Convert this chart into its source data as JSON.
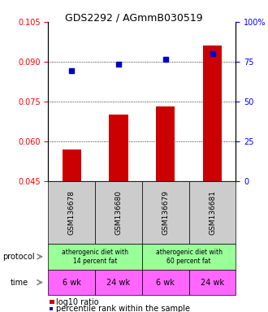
{
  "title": "GDS2292 / AGmmB030519",
  "samples": [
    "GSM136678",
    "GSM136680",
    "GSM136679",
    "GSM136681"
  ],
  "bar_values": [
    0.057,
    0.07,
    0.073,
    0.096
  ],
  "bar_bottom": 0.045,
  "dot_values": [
    0.0865,
    0.089,
    0.091,
    0.093
  ],
  "ylim_left": [
    0.045,
    0.105
  ],
  "ylim_right": [
    0,
    100
  ],
  "yticks_left": [
    0.045,
    0.06,
    0.075,
    0.09,
    0.105
  ],
  "yticks_right": [
    0,
    25,
    50,
    75,
    100
  ],
  "ytick_labels_right": [
    "0",
    "25",
    "50",
    "75",
    "100%"
  ],
  "bar_color": "#cc0000",
  "dot_color": "#0000cc",
  "protocol_labels": [
    "atherogenic diet with\n14 percent fat",
    "atherogenic diet with\n60 percent fat"
  ],
  "protocol_color": "#99ff99",
  "time_labels": [
    "6 wk",
    "24 wk",
    "6 wk",
    "24 wk"
  ],
  "time_color": "#ff66ff",
  "sample_box_color": "#cccccc",
  "legend_bar_label": "log10 ratio",
  "legend_dot_label": "percentile rank within the sample",
  "protocol_arrow_label": "protocol",
  "time_arrow_label": "time",
  "arrow_color": "#888888"
}
